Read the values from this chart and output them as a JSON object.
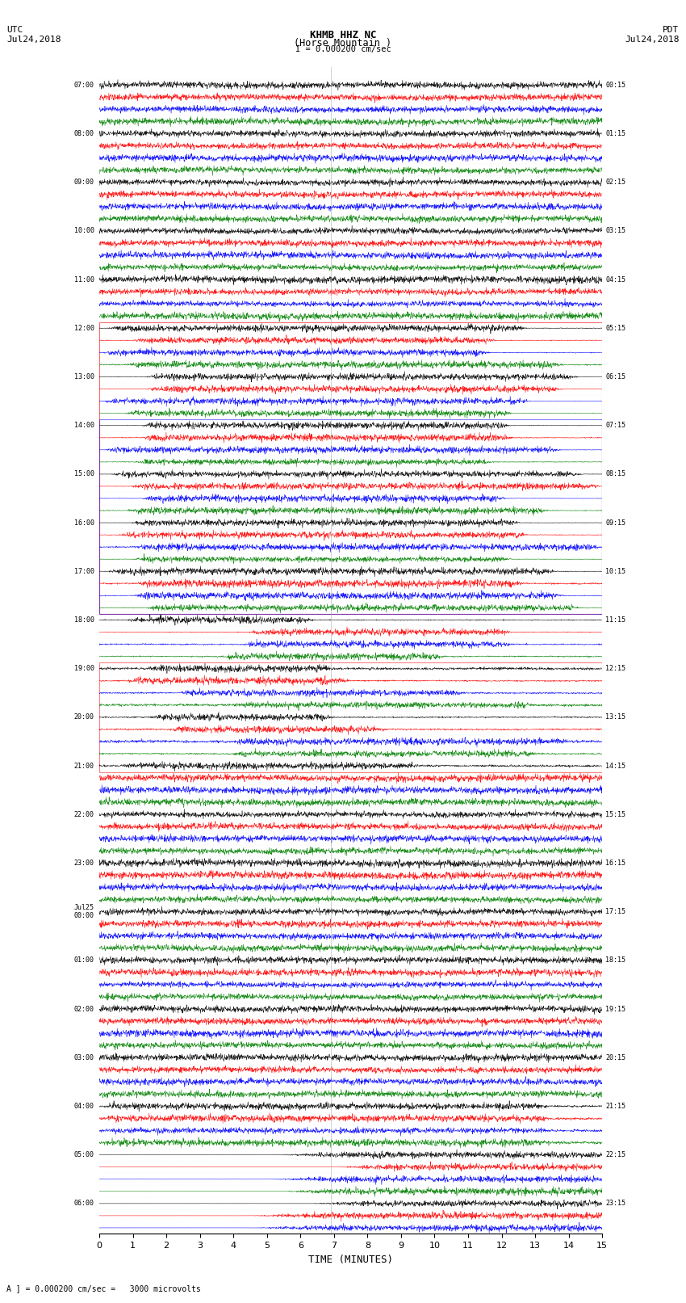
{
  "title_line1": "KHMB HHZ NC",
  "title_line2": "(Horse Mountain )",
  "scale_label": "I = 0.000200 cm/sec",
  "left_label": "UTC\nJul24,2018",
  "right_label": "PDT\nJul24,2018",
  "xlabel": "TIME (MINUTES)",
  "footer": "A ] = 0.000200 cm/sec =   3000 microvolts",
  "utc_times": [
    "07:00",
    "",
    "",
    "",
    "08:00",
    "",
    "",
    "",
    "09:00",
    "",
    "",
    "",
    "10:00",
    "",
    "",
    "",
    "11:00",
    "",
    "",
    "",
    "12:00",
    "",
    "",
    "",
    "13:00",
    "",
    "",
    "",
    "14:00",
    "",
    "",
    "",
    "15:00",
    "",
    "",
    "",
    "16:00",
    "",
    "",
    "",
    "17:00",
    "",
    "",
    "",
    "18:00",
    "",
    "",
    "",
    "19:00",
    "",
    "",
    "",
    "20:00",
    "",
    "",
    "",
    "21:00",
    "",
    "",
    "",
    "22:00",
    "",
    "",
    "",
    "23:00",
    "",
    "",
    "",
    "Jul25\n00:00",
    "",
    "",
    "",
    "01:00",
    "",
    "",
    "",
    "02:00",
    "",
    "",
    "",
    "03:00",
    "",
    "",
    "",
    "04:00",
    "",
    "",
    "",
    "05:00",
    "",
    "",
    "",
    "06:00",
    "",
    ""
  ],
  "pdt_times": [
    "00:15",
    "",
    "",
    "",
    "01:15",
    "",
    "",
    "",
    "02:15",
    "",
    "",
    "",
    "03:15",
    "",
    "",
    "",
    "04:15",
    "",
    "",
    "",
    "05:15",
    "",
    "",
    "",
    "06:15",
    "",
    "",
    "",
    "07:15",
    "",
    "",
    "",
    "08:15",
    "",
    "",
    "",
    "09:15",
    "",
    "",
    "",
    "10:15",
    "",
    "",
    "",
    "11:15",
    "",
    "",
    "",
    "12:15",
    "",
    "",
    "",
    "13:15",
    "",
    "",
    "",
    "14:15",
    "",
    "",
    "",
    "15:15",
    "",
    "",
    "",
    "16:15",
    "",
    "",
    "",
    "17:15",
    "",
    "",
    "",
    "18:15",
    "",
    "",
    "",
    "19:15",
    "",
    "",
    "",
    "20:15",
    "",
    "",
    "",
    "21:15",
    "",
    "",
    "",
    "22:15",
    "",
    "",
    "",
    "23:15",
    "",
    ""
  ],
  "colors": [
    "black",
    "red",
    "blue",
    "green"
  ],
  "bg_color": "white",
  "xmin": 0,
  "xmax": 15,
  "xticks": [
    0,
    1,
    2,
    3,
    4,
    5,
    6,
    7,
    8,
    9,
    10,
    11,
    12,
    13,
    14,
    15
  ],
  "figsize": [
    8.5,
    16.13
  ],
  "dpi": 100
}
